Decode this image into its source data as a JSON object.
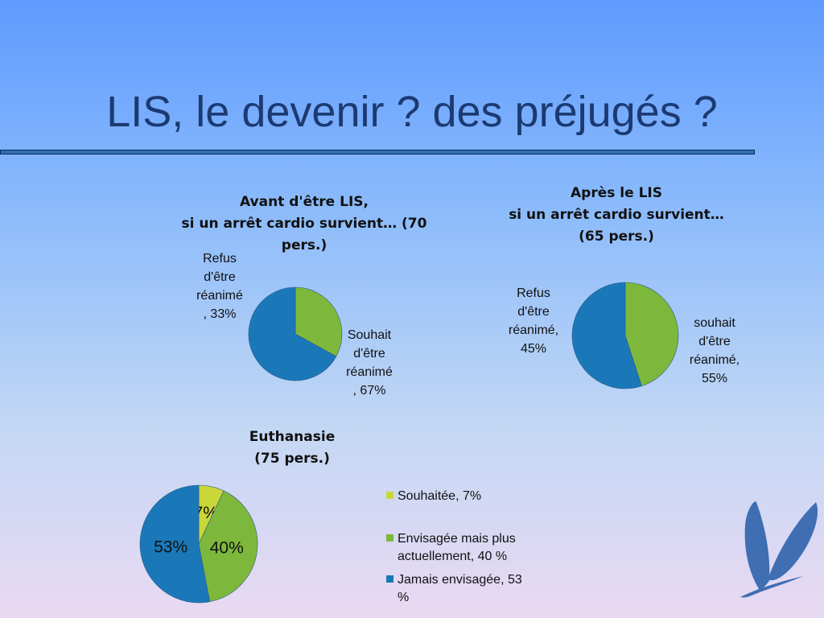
{
  "slide": {
    "title": "LIS, le devenir ? des préjugés ?"
  },
  "colors": {
    "green": "#7db83c",
    "blue": "#1b78b8",
    "yellow": "#c9d738",
    "title": "#1c3a72",
    "logo": "#3f6eb3"
  },
  "chart_data": [
    {
      "type": "pie",
      "title": "Avant d'être LIS, si un arrêt cardio survient… (70 pers.)",
      "title_lines": [
        "Avant d'être LIS,",
        "si un arrêt cardio survient… (70",
        "pers.)"
      ],
      "slices": [
        {
          "label": "Refus d'être réanimé",
          "value": 33,
          "color": "#7db83c",
          "label_lines": [
            "Refus",
            "d'être",
            "réanimé",
            ", 33%"
          ]
        },
        {
          "label": "Souhait d'être réanimé",
          "value": 67,
          "color": "#1b78b8",
          "label_lines": [
            "Souhait",
            "d'être",
            "réanimé",
            ", 67%"
          ]
        }
      ]
    },
    {
      "type": "pie",
      "title": "Après le LIS si un arrêt cardio survient… (65 pers.)",
      "title_lines": [
        "Après le LIS",
        "si un arrêt cardio survient…",
        "(65 pers.)"
      ],
      "slices": [
        {
          "label": "Refus d'être réanimé",
          "value": 45,
          "color": "#7db83c",
          "label_lines": [
            "Refus",
            "d'être",
            "réanimé,",
            "45%"
          ]
        },
        {
          "label": "souhait d'être réanimé",
          "value": 55,
          "color": "#1b78b8",
          "label_lines": [
            "souhait",
            "d'être",
            "réanimé,",
            "55%"
          ]
        }
      ]
    },
    {
      "type": "pie",
      "title": "Euthanasie (75 pers.)",
      "title_lines": [
        "Euthanasie",
        "(75 pers.)"
      ],
      "slices": [
        {
          "label": "Souhaitée",
          "value": 7,
          "color": "#c9d738",
          "data_label": "7%",
          "legend_lines": [
            "Souhaitée, 7%"
          ]
        },
        {
          "label": "Envisagée mais plus actuellement",
          "value": 40,
          "color": "#7db83c",
          "data_label": "40%",
          "legend_lines": [
            "Envisagée mais plus",
            "actuellement, 40 %"
          ]
        },
        {
          "label": "Jamais envisagée",
          "value": 53,
          "color": "#1b78b8",
          "data_label": "53%",
          "legend_lines": [
            "Jamais envisagée, 53",
            "%"
          ]
        }
      ]
    }
  ]
}
